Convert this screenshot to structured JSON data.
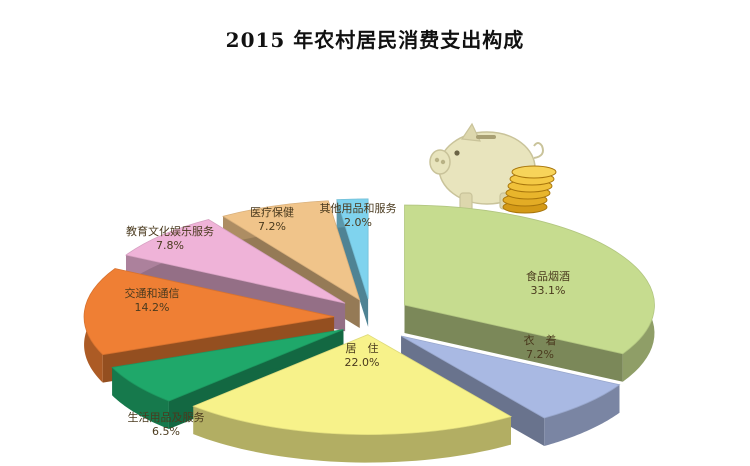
{
  "chart_data": {
    "type": "pie",
    "title": "2015 年农村居民消费支出构成",
    "slices": [
      {
        "label": "食品烟酒",
        "value": 33.1,
        "display": "33.1%",
        "color": "#c6dc8f"
      },
      {
        "label": "衣　着",
        "value": 7.2,
        "display": "7.2%",
        "color": "#a9b9e3"
      },
      {
        "label": "居　住",
        "value": 22.0,
        "display": "22.0%",
        "color": "#f7f28a"
      },
      {
        "label": "生活用品及服务",
        "value": 6.5,
        "display": "6.5%",
        "color": "#1fa86a"
      },
      {
        "label": "交通和通信",
        "value": 14.2,
        "display": "14.2%",
        "color": "#ef7f34"
      },
      {
        "label": "教育文化娱乐服务",
        "value": 7.8,
        "display": "7.8%",
        "color": "#efb3d8"
      },
      {
        "label": "医疗保健",
        "value": 7.2,
        "display": "7.2%",
        "color": "#f0c48a"
      },
      {
        "label": "其他用品和服务",
        "value": 2.0,
        "display": "2.0%",
        "color": "#7fd3ee"
      }
    ],
    "legend": "none"
  },
  "decor": {
    "piggy_icon": "piggy-bank-with-coins-icon"
  }
}
